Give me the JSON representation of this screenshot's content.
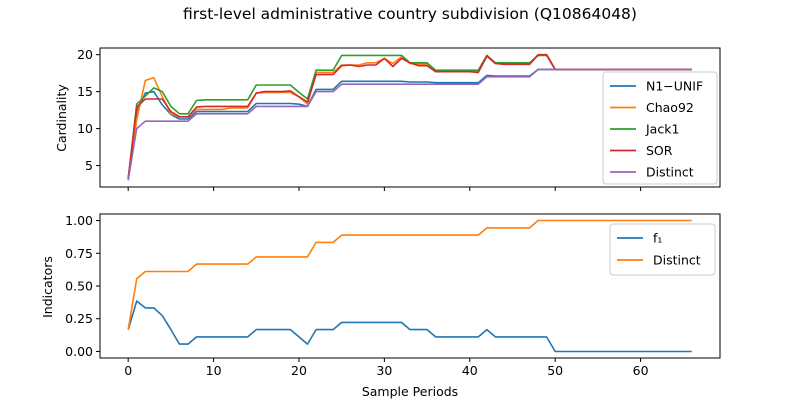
{
  "figure": {
    "title": "first-level administrative country subdivision (Q10864048)",
    "xlabel": "Sample Periods"
  },
  "colors": {
    "blue": "#1f77b4",
    "orange": "#ff7f0e",
    "green": "#2ca02c",
    "red": "#d62728",
    "purple": "#9467bd"
  },
  "chart_data": [
    {
      "type": "line",
      "ylabel": "Cardinality",
      "xlim": [
        -3.3,
        69.3
      ],
      "ylim": [
        2.1,
        20.9
      ],
      "xticks": [
        0,
        10,
        20,
        30,
        40,
        50,
        60
      ],
      "yticks": [
        5,
        10,
        15,
        20
      ],
      "legend_position": "right",
      "grid": false,
      "series": [
        {
          "name": "N1−UNIF",
          "color": "blue",
          "x": [
            0,
            1,
            2,
            3,
            4,
            5,
            6,
            7,
            8,
            9,
            10,
            11,
            12,
            13,
            14,
            15,
            16,
            17,
            18,
            19,
            20,
            21,
            22,
            23,
            24,
            25,
            26,
            27,
            28,
            29,
            30,
            31,
            32,
            33,
            34,
            35,
            36,
            37,
            38,
            39,
            40,
            41,
            42,
            43,
            44,
            45,
            46,
            47,
            48,
            49,
            50,
            51,
            52,
            53,
            54,
            55,
            56,
            57,
            58,
            59,
            60,
            61,
            62,
            63,
            64,
            65,
            66
          ],
          "y": [
            3.2,
            12.3,
            14.8,
            15.0,
            13.2,
            11.9,
            11.3,
            11.3,
            12.3,
            12.3,
            12.3,
            12.3,
            12.3,
            12.3,
            12.3,
            13.4,
            13.4,
            13.4,
            13.4,
            13.4,
            13.3,
            13.0,
            15.3,
            15.3,
            15.3,
            16.4,
            16.4,
            16.4,
            16.4,
            16.4,
            16.4,
            16.4,
            16.4,
            16.3,
            16.3,
            16.3,
            16.2,
            16.2,
            16.2,
            16.2,
            16.2,
            16.2,
            17.2,
            17.1,
            17.1,
            17.1,
            17.1,
            17.1,
            18.0,
            18.0,
            18.0,
            18.0,
            18.0,
            18.0,
            18.0,
            18.0,
            18.0,
            18.0,
            18.0,
            18.0,
            18.0,
            18.0,
            18.0,
            18.0,
            18.0,
            18.0,
            18.0
          ]
        },
        {
          "name": "Chao92",
          "color": "orange",
          "x": [
            0,
            1,
            2,
            3,
            4,
            5,
            6,
            7,
            8,
            9,
            10,
            11,
            12,
            13,
            14,
            15,
            16,
            17,
            18,
            19,
            20,
            21,
            22,
            23,
            24,
            25,
            26,
            27,
            28,
            29,
            30,
            31,
            32,
            33,
            34,
            35,
            36,
            37,
            38,
            39,
            40,
            41,
            42,
            43,
            44,
            45,
            46,
            47,
            48,
            49,
            50,
            51,
            52,
            53,
            54,
            55,
            56,
            57,
            58,
            59,
            60,
            61,
            62,
            63,
            64,
            65,
            66
          ],
          "y": [
            3.2,
            11.2,
            16.5,
            16.9,
            14.3,
            12.0,
            11.6,
            11.6,
            12.6,
            12.6,
            12.6,
            12.6,
            12.8,
            12.8,
            12.8,
            14.8,
            14.9,
            14.9,
            14.9,
            14.9,
            14.3,
            13.3,
            17.6,
            17.6,
            17.6,
            18.6,
            18.6,
            18.6,
            18.9,
            18.9,
            19.5,
            18.8,
            19.7,
            18.8,
            18.7,
            18.7,
            17.8,
            17.8,
            17.8,
            17.8,
            17.8,
            17.8,
            19.9,
            18.8,
            18.8,
            18.8,
            18.8,
            18.8,
            19.9,
            20.0,
            18.0,
            18.0,
            18.0,
            18.0,
            18.0,
            18.0,
            18.0,
            18.0,
            18.0,
            18.0,
            18.0,
            18.0,
            18.0,
            18.0,
            18.0,
            18.0,
            18.0
          ]
        },
        {
          "name": "Jack1",
          "color": "green",
          "x": [
            0,
            1,
            2,
            3,
            4,
            5,
            6,
            7,
            8,
            9,
            10,
            11,
            12,
            13,
            14,
            15,
            16,
            17,
            18,
            19,
            20,
            21,
            22,
            23,
            24,
            25,
            26,
            27,
            28,
            29,
            30,
            31,
            32,
            33,
            34,
            35,
            36,
            37,
            38,
            39,
            40,
            41,
            42,
            43,
            44,
            45,
            46,
            47,
            48,
            49,
            50,
            51,
            52,
            53,
            54,
            55,
            56,
            57,
            58,
            59,
            60,
            61,
            62,
            63,
            64,
            65,
            66
          ],
          "y": [
            3.2,
            13.3,
            14.4,
            15.5,
            15.0,
            13.0,
            12.0,
            12.0,
            13.8,
            13.9,
            13.9,
            13.9,
            13.9,
            13.9,
            13.9,
            15.9,
            15.9,
            15.9,
            15.9,
            15.9,
            14.9,
            14.0,
            17.9,
            17.9,
            17.9,
            19.9,
            19.9,
            19.9,
            19.9,
            19.9,
            19.9,
            19.9,
            19.9,
            18.9,
            18.9,
            18.9,
            17.9,
            17.9,
            17.9,
            17.9,
            17.9,
            17.9,
            19.9,
            18.9,
            18.9,
            18.9,
            18.9,
            18.9,
            19.9,
            19.9,
            18.0,
            18.0,
            18.0,
            18.0,
            18.0,
            18.0,
            18.0,
            18.0,
            18.0,
            18.0,
            18.0,
            18.0,
            18.0,
            18.0,
            18.0,
            18.0,
            18.0
          ]
        },
        {
          "name": "SOR",
          "color": "red",
          "x": [
            0,
            1,
            2,
            3,
            4,
            5,
            6,
            7,
            8,
            9,
            10,
            11,
            12,
            13,
            14,
            15,
            16,
            17,
            18,
            19,
            20,
            21,
            22,
            23,
            24,
            25,
            26,
            27,
            28,
            29,
            30,
            31,
            32,
            33,
            34,
            35,
            36,
            37,
            38,
            39,
            40,
            41,
            42,
            43,
            44,
            45,
            46,
            47,
            48,
            49,
            50,
            51,
            52,
            53,
            54,
            55,
            56,
            57,
            58,
            59,
            60,
            61,
            62,
            63,
            64,
            65,
            66
          ],
          "y": [
            3.2,
            12.9,
            14.0,
            14.0,
            14.0,
            12.3,
            11.6,
            11.6,
            12.9,
            13.0,
            13.0,
            13.0,
            13.0,
            13.0,
            13.0,
            14.8,
            15.0,
            15.0,
            15.0,
            15.1,
            14.3,
            13.6,
            17.3,
            17.3,
            17.3,
            18.5,
            18.6,
            18.4,
            18.6,
            18.6,
            19.5,
            18.4,
            19.5,
            18.9,
            18.5,
            18.5,
            17.7,
            17.7,
            17.7,
            17.7,
            17.7,
            17.6,
            19.8,
            18.8,
            18.7,
            18.7,
            18.7,
            18.7,
            20.0,
            20.0,
            18.0,
            18.0,
            18.0,
            18.0,
            18.0,
            18.0,
            18.0,
            18.0,
            18.0,
            18.0,
            18.0,
            18.0,
            18.0,
            18.0,
            18.0,
            18.0,
            18.0
          ]
        },
        {
          "name": "Distinct",
          "color": "purple",
          "x": [
            0,
            1,
            2,
            3,
            4,
            5,
            6,
            7,
            8,
            9,
            10,
            11,
            12,
            13,
            14,
            15,
            16,
            17,
            18,
            19,
            20,
            21,
            22,
            23,
            24,
            25,
            26,
            27,
            28,
            29,
            30,
            31,
            32,
            33,
            34,
            35,
            36,
            37,
            38,
            39,
            40,
            41,
            42,
            43,
            44,
            45,
            46,
            47,
            48,
            49,
            50,
            51,
            52,
            53,
            54,
            55,
            56,
            57,
            58,
            59,
            60,
            61,
            62,
            63,
            64,
            65,
            66
          ],
          "y": [
            3.0,
            10.0,
            11.0,
            11.0,
            11.0,
            11.0,
            11.0,
            11.0,
            12.0,
            12.0,
            12.0,
            12.0,
            12.0,
            12.0,
            12.0,
            13.0,
            13.0,
            13.0,
            13.0,
            13.0,
            13.0,
            13.0,
            15.0,
            15.0,
            15.0,
            16.0,
            16.0,
            16.0,
            16.0,
            16.0,
            16.0,
            16.0,
            16.0,
            16.0,
            16.0,
            16.0,
            16.0,
            16.0,
            16.0,
            16.0,
            16.0,
            16.0,
            17.0,
            17.0,
            17.0,
            17.0,
            17.0,
            17.0,
            18.0,
            18.0,
            18.0,
            18.0,
            18.0,
            18.0,
            18.0,
            18.0,
            18.0,
            18.0,
            18.0,
            18.0,
            18.0,
            18.0,
            18.0,
            18.0,
            18.0,
            18.0,
            18.0
          ]
        }
      ]
    },
    {
      "type": "line",
      "ylabel": "Indicators",
      "xlim": [
        -3.3,
        69.3
      ],
      "ylim": [
        -0.05,
        1.05
      ],
      "xticks": [
        0,
        10,
        20,
        30,
        40,
        50,
        60
      ],
      "yticks": [
        0.0,
        0.25,
        0.5,
        0.75,
        1.0
      ],
      "legend_position": "upper right",
      "grid": false,
      "series": [
        {
          "name": "f₁",
          "color": "blue",
          "x": [
            0,
            1,
            2,
            3,
            4,
            5,
            6,
            7,
            8,
            9,
            10,
            11,
            12,
            13,
            14,
            15,
            16,
            17,
            18,
            19,
            20,
            21,
            22,
            23,
            24,
            25,
            26,
            27,
            28,
            29,
            30,
            31,
            32,
            33,
            34,
            35,
            36,
            37,
            38,
            39,
            40,
            41,
            42,
            43,
            44,
            45,
            46,
            47,
            48,
            49,
            50,
            51,
            52,
            53,
            54,
            55,
            56,
            57,
            58,
            59,
            60,
            61,
            62,
            63,
            64,
            65,
            66
          ],
          "y": [
            0.167,
            0.385,
            0.333,
            0.333,
            0.273,
            0.167,
            0.056,
            0.056,
            0.111,
            0.111,
            0.111,
            0.111,
            0.111,
            0.111,
            0.111,
            0.167,
            0.167,
            0.167,
            0.167,
            0.167,
            0.111,
            0.056,
            0.167,
            0.167,
            0.167,
            0.222,
            0.222,
            0.222,
            0.222,
            0.222,
            0.222,
            0.222,
            0.222,
            0.167,
            0.167,
            0.167,
            0.111,
            0.111,
            0.111,
            0.111,
            0.111,
            0.111,
            0.167,
            0.111,
            0.111,
            0.111,
            0.111,
            0.111,
            0.111,
            0.111,
            0.0,
            0.0,
            0.0,
            0.0,
            0.0,
            0.0,
            0.0,
            0.0,
            0.0,
            0.0,
            0.0,
            0.0,
            0.0,
            0.0,
            0.0,
            0.0,
            0.0
          ]
        },
        {
          "name": "Distinct",
          "color": "orange",
          "x": [
            0,
            1,
            2,
            3,
            4,
            5,
            6,
            7,
            8,
            9,
            10,
            11,
            12,
            13,
            14,
            15,
            16,
            17,
            18,
            19,
            20,
            21,
            22,
            23,
            24,
            25,
            26,
            27,
            28,
            29,
            30,
            31,
            32,
            33,
            34,
            35,
            36,
            37,
            38,
            39,
            40,
            41,
            42,
            43,
            44,
            45,
            46,
            47,
            48,
            49,
            50,
            51,
            52,
            53,
            54,
            55,
            56,
            57,
            58,
            59,
            60,
            61,
            62,
            63,
            64,
            65,
            66
          ],
          "y": [
            0.167,
            0.556,
            0.611,
            0.611,
            0.611,
            0.611,
            0.611,
            0.611,
            0.667,
            0.667,
            0.667,
            0.667,
            0.667,
            0.667,
            0.667,
            0.722,
            0.722,
            0.722,
            0.722,
            0.722,
            0.722,
            0.722,
            0.833,
            0.833,
            0.833,
            0.889,
            0.889,
            0.889,
            0.889,
            0.889,
            0.889,
            0.889,
            0.889,
            0.889,
            0.889,
            0.889,
            0.889,
            0.889,
            0.889,
            0.889,
            0.889,
            0.889,
            0.944,
            0.944,
            0.944,
            0.944,
            0.944,
            0.944,
            1.0,
            1.0,
            1.0,
            1.0,
            1.0,
            1.0,
            1.0,
            1.0,
            1.0,
            1.0,
            1.0,
            1.0,
            1.0,
            1.0,
            1.0,
            1.0,
            1.0,
            1.0,
            1.0
          ]
        }
      ]
    }
  ]
}
